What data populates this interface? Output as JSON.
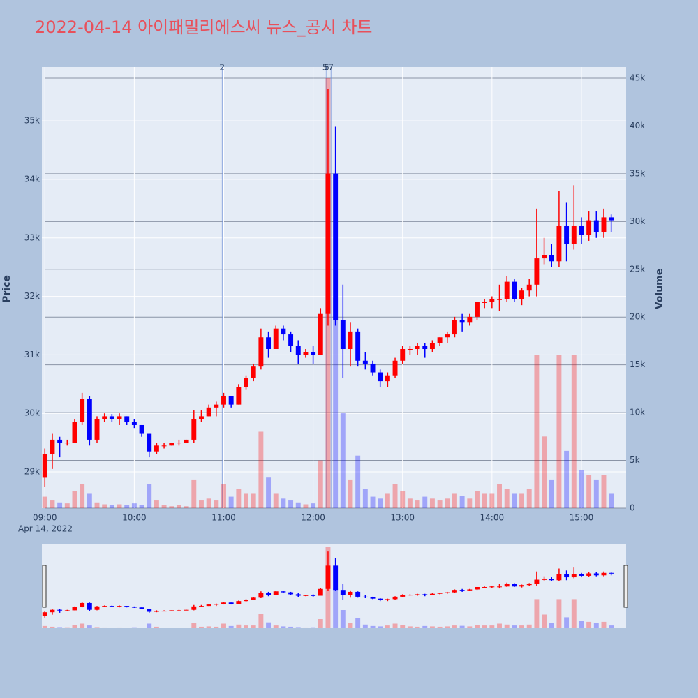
{
  "chart_data": {
    "type": "candlestick",
    "title": "2022-04-14 아이패밀리에스씨 뉴스_공시 차트",
    "y_label": "Price",
    "y2_label": "Volume",
    "x_date_label": "Apr 14, 2022",
    "increasing_color": "#ff0000",
    "decreasing_color": "#0000ff",
    "x": [
      "09:00",
      "09:05",
      "09:10",
      "09:15",
      "09:20",
      "09:25",
      "09:30",
      "09:35",
      "09:40",
      "09:45",
      "09:50",
      "09:55",
      "10:00",
      "10:05",
      "10:10",
      "10:15",
      "10:20",
      "10:25",
      "10:30",
      "10:35",
      "10:40",
      "10:45",
      "10:50",
      "10:55",
      "11:00",
      "11:05",
      "11:10",
      "11:15",
      "11:20",
      "11:25",
      "11:30",
      "11:35",
      "11:40",
      "11:45",
      "11:50",
      "11:55",
      "12:00",
      "12:05",
      "12:10",
      "12:15",
      "12:20",
      "12:25",
      "12:30",
      "12:35",
      "12:40",
      "12:45",
      "12:50",
      "12:55",
      "13:00",
      "13:05",
      "13:10",
      "13:15",
      "13:20",
      "13:25",
      "13:30",
      "13:35",
      "13:40",
      "13:45",
      "13:50",
      "13:55",
      "14:00",
      "14:05",
      "14:10",
      "14:15",
      "14:20",
      "14:25",
      "14:30",
      "14:35",
      "14:40",
      "14:45",
      "14:50",
      "14:55",
      "15:00",
      "15:05",
      "15:10",
      "15:15",
      "15:20"
    ],
    "open": [
      28900,
      29300,
      29550,
      29500,
      29500,
      29850,
      30250,
      29550,
      29900,
      29950,
      29900,
      29950,
      29850,
      29800,
      29650,
      29350,
      29450,
      29450,
      29500,
      29500,
      29550,
      29900,
      29950,
      30100,
      30150,
      30300,
      30150,
      30450,
      30600,
      30800,
      31300,
      31100,
      31450,
      31350,
      31150,
      31000,
      31050,
      31000,
      31700,
      34100,
      31600,
      31100,
      31400,
      30900,
      30850,
      30700,
      30550,
      30650,
      30900,
      31100,
      31100,
      31150,
      31100,
      31200,
      31300,
      31350,
      31600,
      31550,
      31650,
      31900,
      31900,
      31950,
      31950,
      32250,
      31950,
      32100,
      32200,
      32650,
      32700,
      32600,
      33200,
      32900,
      33200,
      33050,
      33300,
      33100,
      33350
    ],
    "high": [
      29400,
      29650,
      29600,
      29550,
      29900,
      30350,
      30300,
      29950,
      30000,
      29990,
      30000,
      29950,
      29900,
      29800,
      29650,
      29500,
      29500,
      29500,
      29550,
      29550,
      30050,
      30050,
      30150,
      30200,
      30350,
      30300,
      30500,
      30650,
      30850,
      31450,
      31400,
      31500,
      31500,
      31400,
      31250,
      31100,
      31150,
      31800,
      35550,
      34900,
      32200,
      31550,
      31450,
      31050,
      30900,
      30750,
      30700,
      30950,
      31150,
      31150,
      31200,
      31200,
      31250,
      31300,
      31400,
      31650,
      31700,
      31700,
      31900,
      31950,
      32000,
      32200,
      32350,
      32300,
      32150,
      32300,
      33500,
      33000,
      32900,
      33800,
      33600,
      33900,
      33350,
      33450,
      33450,
      33500,
      33400
    ],
    "low": [
      28750,
      29050,
      29250,
      29450,
      29500,
      29800,
      29450,
      29500,
      29850,
      29850,
      29800,
      29800,
      29750,
      29600,
      29250,
      29300,
      29400,
      29450,
      29450,
      29500,
      29500,
      29850,
      29950,
      29950,
      30100,
      30100,
      30150,
      30400,
      30550,
      30750,
      30950,
      31100,
      31250,
      31050,
      30850,
      30950,
      30850,
      31000,
      31500,
      31500,
      30600,
      30800,
      30800,
      30750,
      30650,
      30450,
      30450,
      30600,
      30850,
      31000,
      31000,
      30950,
      31050,
      31150,
      31200,
      31300,
      31400,
      31500,
      31600,
      31800,
      31800,
      31750,
      31900,
      31900,
      31850,
      32000,
      32000,
      32550,
      32500,
      32500,
      32600,
      32800,
      32900,
      32950,
      33000,
      33000,
      33100
    ],
    "close": [
      29300,
      29550,
      29500,
      29500,
      29850,
      30250,
      29550,
      29900,
      29950,
      29900,
      29950,
      29850,
      29800,
      29650,
      29350,
      29450,
      29450,
      29500,
      29500,
      29550,
      29900,
      29950,
      30100,
      30150,
      30300,
      30150,
      30450,
      30600,
      30800,
      31300,
      31100,
      31450,
      31350,
      31150,
      31000,
      31050,
      31000,
      31700,
      34100,
      31600,
      31100,
      31400,
      30900,
      30850,
      30700,
      30550,
      30650,
      30900,
      31100,
      31100,
      31150,
      31100,
      31200,
      31300,
      31350,
      31600,
      31550,
      31650,
      31900,
      31900,
      31950,
      31950,
      32250,
      31950,
      32100,
      32200,
      32650,
      32700,
      32600,
      33200,
      32900,
      33200,
      33050,
      33300,
      33100,
      33350,
      33300
    ],
    "volume": [
      1200,
      800,
      600,
      500,
      1800,
      2500,
      1500,
      600,
      400,
      300,
      400,
      300,
      500,
      300,
      2500,
      800,
      300,
      200,
      300,
      200,
      3000,
      800,
      1000,
      800,
      2500,
      1200,
      2000,
      1500,
      1500,
      8000,
      3200,
      1500,
      1000,
      800,
      600,
      400,
      500,
      5000,
      45000,
      22000,
      10000,
      3000,
      5500,
      2000,
      1200,
      1000,
      1500,
      2500,
      1800,
      1000,
      800,
      1200,
      1000,
      800,
      1000,
      1500,
      1300,
      1000,
      1800,
      1500,
      1500,
      2500,
      2000,
      1500,
      1500,
      2000,
      16000,
      7500,
      3000,
      16000,
      6000,
      16000,
      4000,
      3500,
      3000,
      3500,
      1500
    ],
    "xlim": [
      "08:58",
      "15:30"
    ],
    "xticks": [
      "09:00",
      "10:00",
      "11:00",
      "12:00",
      "13:00",
      "14:00",
      "15:00"
    ],
    "ylim": [
      28380,
      35920
    ],
    "yticks": [
      {
        "value": 29000,
        "label": "29k"
      },
      {
        "value": 30000,
        "label": "30k"
      },
      {
        "value": 31000,
        "label": "31k"
      },
      {
        "value": 32000,
        "label": "32k"
      },
      {
        "value": 33000,
        "label": "33k"
      },
      {
        "value": 34000,
        "label": "34k"
      },
      {
        "value": 35000,
        "label": "35k"
      }
    ],
    "y2lim": [
      0,
      46170
    ],
    "y2ticks": [
      0,
      {
        "value": 5000,
        "label": "5k"
      },
      {
        "value": 10000,
        "label": "10k"
      },
      {
        "value": 15000,
        "label": "15k"
      },
      {
        "value": 20000,
        "label": "20k"
      },
      {
        "value": 25000,
        "label": "25k"
      },
      {
        "value": 30000,
        "label": "30k"
      },
      {
        "value": 35000,
        "label": "35k"
      },
      {
        "value": 40000,
        "label": "40k"
      },
      {
        "value": 45000,
        "label": "45k"
      }
    ],
    "grid": true,
    "annotations": [
      {
        "x": "10:59",
        "label": "2"
      },
      {
        "x": "12:08",
        "label": "5"
      },
      {
        "x": "12:09",
        "label": "6"
      },
      {
        "x": "12:12",
        "label": "7"
      }
    ]
  }
}
